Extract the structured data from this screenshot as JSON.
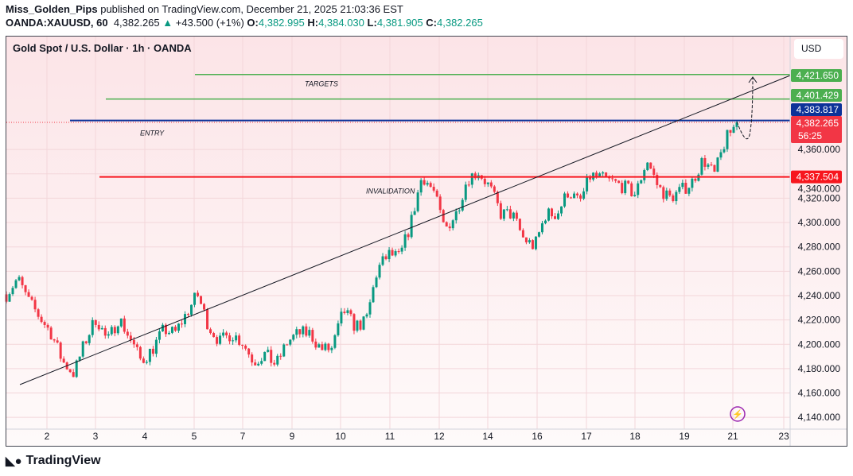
{
  "header": {
    "author": "Miss_Golden_Pips",
    "published": "published on TradingView.com, December 21, 2025 21:03:36 EST",
    "symbol": "OANDA:XAUUSD, 60",
    "last": "4,382.265",
    "change": "+43.500 (+1%)",
    "o": "4,382.995",
    "h": "4,384.030",
    "l": "4,381.905",
    "c": "4,382.265"
  },
  "chart_title": "Gold Spot / U.S. Dollar · 1h · OANDA",
  "currency": "USD",
  "countdown": "56:25",
  "brand": "TradingView",
  "colors": {
    "up": "#089981",
    "down": "#f23645",
    "target": "#4caf50",
    "entry": "#0c3299",
    "invalidation": "#f7161e"
  },
  "chart_data": {
    "type": "candlestick",
    "ylim": [
      4130,
      4435
    ],
    "yticks": [
      "4,360.000",
      "4,340.000",
      "4,320.000",
      "4,300.000",
      "4,280.000",
      "4,260.000",
      "4,240.000",
      "4,220.000",
      "4,200.000",
      "4,180.000",
      "4,160.000",
      "4,140.000"
    ],
    "ytick_values": [
      4360,
      4340,
      4320,
      4300,
      4280,
      4260,
      4240,
      4220,
      4200,
      4180,
      4160,
      4140
    ],
    "xticks": [
      "2",
      "3",
      "4",
      "5",
      "7",
      "9",
      "10",
      "11",
      "12",
      "14",
      "16",
      "17",
      "18",
      "19",
      "21",
      "23"
    ],
    "approx_closes": [
      4241,
      4254,
      4235,
      4222,
      4209,
      4186,
      4176,
      4202,
      4222,
      4202,
      4222,
      4205,
      4186,
      4196,
      4212,
      4209,
      4225,
      4241,
      4215,
      4202,
      4209,
      4202,
      4186,
      4192,
      4183,
      4202,
      4209,
      4209,
      4196,
      4196,
      4228,
      4215,
      4218,
      4261,
      4274,
      4271,
      4300,
      4339,
      4326,
      4294,
      4307,
      4336,
      4342,
      4329,
      4307,
      4307,
      4287,
      4280,
      4307,
      4307,
      4326,
      4316,
      4339,
      4336,
      4333,
      4329,
      4323,
      4352,
      4329,
      4320,
      4326,
      4333,
      4352,
      4339,
      4368,
      4382
    ],
    "levels": [
      {
        "label": "TARGETS",
        "price": 4421.65,
        "text": "4,421.650",
        "kind": "target"
      },
      {
        "label": "",
        "price": 4401.429,
        "text": "4,401.429",
        "kind": "target"
      },
      {
        "label": "ENTRY",
        "price": 4383.817,
        "text": "4,383.817",
        "kind": "entry"
      },
      {
        "label": "INVALIDATION",
        "price": 4337.504,
        "text": "4,337.504",
        "kind": "invalidation"
      }
    ],
    "current_price": {
      "price": 4382.265,
      "text": "4,382.265"
    }
  }
}
